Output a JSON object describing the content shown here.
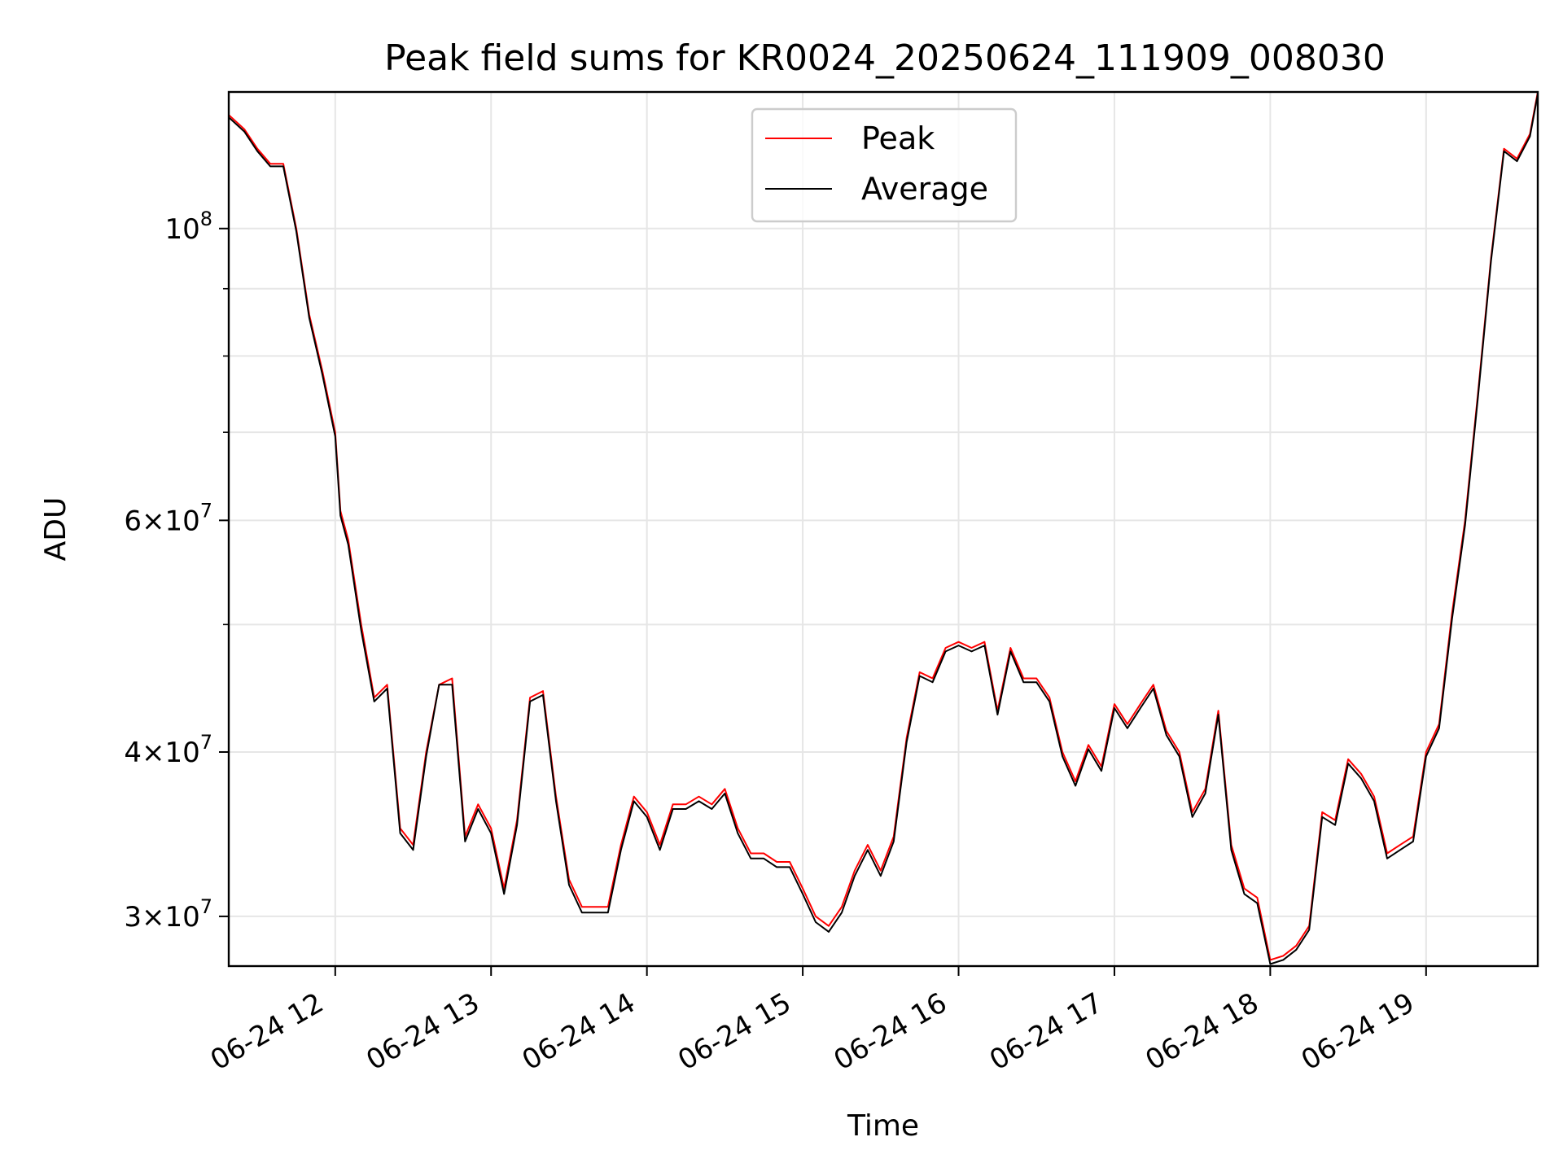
{
  "chart_data": {
    "type": "line",
    "title": "Peak field sums for KR0024_20250624_111909_008030",
    "xlabel": "Time",
    "ylabel": "ADU",
    "yscale": "log",
    "ylim": [
      27500000,
      127000000
    ],
    "xlim": [
      "2025-06-24T11:19",
      "2025-06-24T19:43"
    ],
    "grid": true,
    "legend_position": "top-center",
    "x_ticks": [
      {
        "time": "2025-06-24T12:00",
        "label": "06-24 12"
      },
      {
        "time": "2025-06-24T13:00",
        "label": "06-24 13"
      },
      {
        "time": "2025-06-24T14:00",
        "label": "06-24 14"
      },
      {
        "time": "2025-06-24T15:00",
        "label": "06-24 15"
      },
      {
        "time": "2025-06-24T16:00",
        "label": "06-24 16"
      },
      {
        "time": "2025-06-24T17:00",
        "label": "06-24 17"
      },
      {
        "time": "2025-06-24T18:00",
        "label": "06-24 18"
      },
      {
        "time": "2025-06-24T19:00",
        "label": "06-24 19"
      }
    ],
    "y_ticks": [
      {
        "value": 30000000,
        "mantissa": "3",
        "exponent": "7"
      },
      {
        "value": 40000000,
        "mantissa": "4",
        "exponent": "7"
      },
      {
        "value": 60000000,
        "mantissa": "6",
        "exponent": "7"
      },
      {
        "value": 100000000,
        "mantissa": "",
        "exponent": "8"
      }
    ],
    "y_minor_ticks": [
      50000000,
      70000000,
      80000000,
      90000000
    ],
    "x": [
      "2025-06-24T11:19",
      "2025-06-24T11:25",
      "2025-06-24T11:30",
      "2025-06-24T11:35",
      "2025-06-24T11:40",
      "2025-06-24T11:45",
      "2025-06-24T11:50",
      "2025-06-24T11:55",
      "2025-06-24T12:00",
      "2025-06-24T12:02",
      "2025-06-24T12:05",
      "2025-06-24T12:10",
      "2025-06-24T12:15",
      "2025-06-24T12:20",
      "2025-06-24T12:25",
      "2025-06-24T12:30",
      "2025-06-24T12:35",
      "2025-06-24T12:40",
      "2025-06-24T12:45",
      "2025-06-24T12:50",
      "2025-06-24T12:55",
      "2025-06-24T13:00",
      "2025-06-24T13:05",
      "2025-06-24T13:10",
      "2025-06-24T13:15",
      "2025-06-24T13:20",
      "2025-06-24T13:25",
      "2025-06-24T13:30",
      "2025-06-24T13:35",
      "2025-06-24T13:40",
      "2025-06-24T13:45",
      "2025-06-24T13:50",
      "2025-06-24T13:55",
      "2025-06-24T14:00",
      "2025-06-24T14:05",
      "2025-06-24T14:10",
      "2025-06-24T14:15",
      "2025-06-24T14:20",
      "2025-06-24T14:25",
      "2025-06-24T14:30",
      "2025-06-24T14:35",
      "2025-06-24T14:40",
      "2025-06-24T14:45",
      "2025-06-24T14:50",
      "2025-06-24T14:55",
      "2025-06-24T15:00",
      "2025-06-24T15:05",
      "2025-06-24T15:10",
      "2025-06-24T15:15",
      "2025-06-24T15:20",
      "2025-06-24T15:25",
      "2025-06-24T15:30",
      "2025-06-24T15:35",
      "2025-06-24T15:40",
      "2025-06-24T15:45",
      "2025-06-24T15:50",
      "2025-06-24T15:55",
      "2025-06-24T16:00",
      "2025-06-24T16:05",
      "2025-06-24T16:10",
      "2025-06-24T16:15",
      "2025-06-24T16:20",
      "2025-06-24T16:25",
      "2025-06-24T16:30",
      "2025-06-24T16:35",
      "2025-06-24T16:40",
      "2025-06-24T16:45",
      "2025-06-24T16:50",
      "2025-06-24T16:55",
      "2025-06-24T17:00",
      "2025-06-24T17:05",
      "2025-06-24T17:10",
      "2025-06-24T17:15",
      "2025-06-24T17:20",
      "2025-06-24T17:25",
      "2025-06-24T17:30",
      "2025-06-24T17:35",
      "2025-06-24T17:40",
      "2025-06-24T17:45",
      "2025-06-24T17:50",
      "2025-06-24T17:55",
      "2025-06-24T18:00",
      "2025-06-24T18:05",
      "2025-06-24T18:10",
      "2025-06-24T18:15",
      "2025-06-24T18:20",
      "2025-06-24T18:25",
      "2025-06-24T18:30",
      "2025-06-24T18:35",
      "2025-06-24T18:40",
      "2025-06-24T18:45",
      "2025-06-24T18:50",
      "2025-06-24T18:55",
      "2025-06-24T19:00",
      "2025-06-24T19:05",
      "2025-06-24T19:10",
      "2025-06-24T19:15",
      "2025-06-24T19:20",
      "2025-06-24T19:25",
      "2025-06-24T19:30",
      "2025-06-24T19:35",
      "2025-06-24T19:40",
      "2025-06-24T19:43"
    ],
    "series": [
      {
        "name": "Peak",
        "color": "#ff0000",
        "values": [
          122000000,
          119000000,
          115000000,
          112000000,
          112000000,
          100000000,
          86000000,
          78000000,
          70000000,
          61000000,
          58000000,
          50000000,
          44000000,
          45000000,
          35000000,
          34000000,
          40000000,
          45000000,
          45500000,
          34500000,
          36500000,
          35000000,
          31500000,
          35500000,
          44000000,
          44500000,
          37000000,
          32000000,
          30500000,
          30500000,
          30500000,
          34000000,
          37000000,
          36000000,
          34000000,
          36500000,
          36500000,
          37000000,
          36500000,
          37500000,
          35000000,
          33500000,
          33500000,
          33000000,
          33000000,
          31500000,
          30000000,
          29500000,
          30500000,
          32500000,
          34000000,
          32500000,
          34500000,
          41000000,
          46000000,
          45500000,
          48000000,
          48500000,
          48000000,
          48500000,
          43000000,
          48000000,
          45500000,
          45500000,
          44000000,
          40000000,
          38000000,
          40500000,
          39000000,
          43500000,
          42000000,
          43500000,
          45000000,
          41500000,
          40000000,
          36000000,
          37500000,
          43000000,
          34000000,
          31500000,
          31000000,
          27800000,
          28000000,
          28500000,
          29500000,
          36000000,
          35500000,
          39500000,
          38500000,
          37000000,
          33500000,
          34000000,
          34500000,
          40000000,
          42000000,
          51000000,
          60000000,
          75000000,
          95000000,
          115000000,
          113000000,
          118000000,
          127000000
        ]
      },
      {
        "name": "Average",
        "color": "#000000",
        "values": [
          121500000,
          118500000,
          114500000,
          111500000,
          111500000,
          99500000,
          85500000,
          77500000,
          69500000,
          60500000,
          57500000,
          49500000,
          43700000,
          44700000,
          34700000,
          33700000,
          39700000,
          45000000,
          45000000,
          34200000,
          36200000,
          34700000,
          31200000,
          35200000,
          43700000,
          44200000,
          36700000,
          31700000,
          30200000,
          30200000,
          30200000,
          33700000,
          36700000,
          35700000,
          33700000,
          36200000,
          36200000,
          36700000,
          36200000,
          37200000,
          34700000,
          33200000,
          33200000,
          32700000,
          32700000,
          31200000,
          29700000,
          29200000,
          30200000,
          32200000,
          33700000,
          32200000,
          34200000,
          40700000,
          45700000,
          45200000,
          47700000,
          48200000,
          47700000,
          48200000,
          42700000,
          47700000,
          45200000,
          45200000,
          43700000,
          39700000,
          37700000,
          40200000,
          38700000,
          43200000,
          41700000,
          43200000,
          44700000,
          41200000,
          39700000,
          35700000,
          37200000,
          42700000,
          33700000,
          31200000,
          30700000,
          27600000,
          27800000,
          28300000,
          29300000,
          35700000,
          35200000,
          39200000,
          38200000,
          36700000,
          33200000,
          33700000,
          34200000,
          39700000,
          41700000,
          50500000,
          59500000,
          74500000,
          94500000,
          114500000,
          112500000,
          117500000,
          126500000
        ]
      }
    ]
  }
}
